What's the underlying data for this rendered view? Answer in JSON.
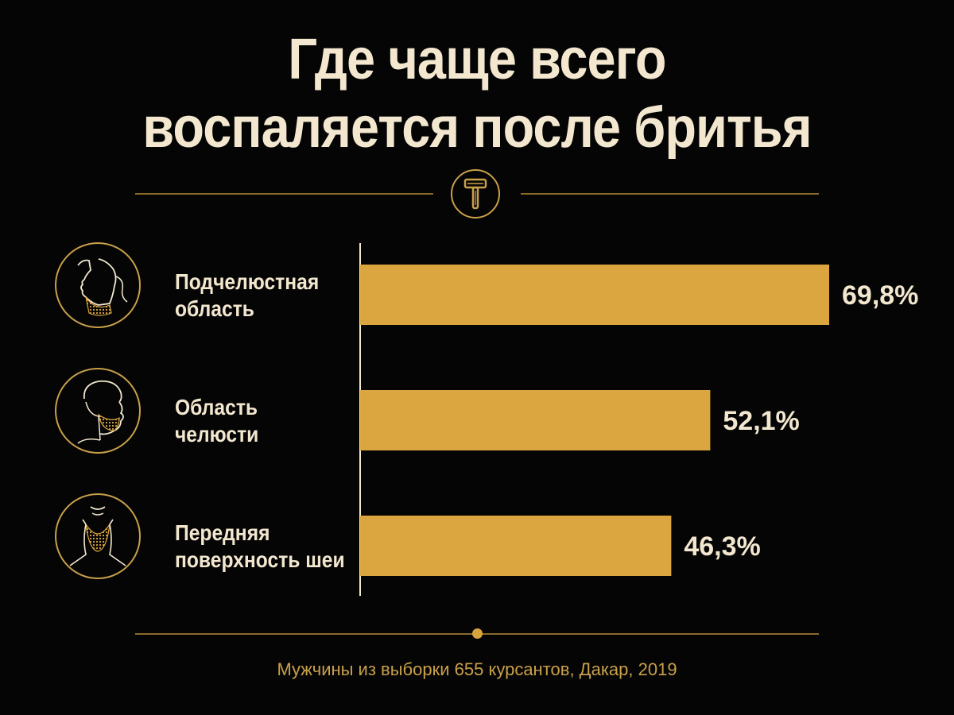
{
  "title_lines": [
    "Где чаще всего",
    "воспаляется после бритья"
  ],
  "footer": "Мужчины из выборки 655 курсантов, Дакар, 2019",
  "colors": {
    "background": "#050505",
    "bar": "#dba63f",
    "text": "#f3e8cf",
    "accent": "#c9a04a",
    "line": "#8a6a2a"
  },
  "icons": [
    "razor-icon",
    "submandibular-face-icon",
    "jaw-face-icon",
    "front-neck-face-icon"
  ],
  "chart_data": {
    "type": "bar",
    "orientation": "horizontal",
    "categories": [
      [
        "Подчелюстная",
        "область"
      ],
      [
        "Область",
        "челюсти"
      ],
      [
        "Передняя",
        "поверхность шеи"
      ]
    ],
    "values": [
      69.8,
      52.1,
      46.3
    ],
    "value_labels": [
      "69,8%",
      "52,1%",
      "46,3%"
    ],
    "unit": "%",
    "xlim": [
      0,
      69.8
    ],
    "grid": false,
    "legend": "none"
  }
}
